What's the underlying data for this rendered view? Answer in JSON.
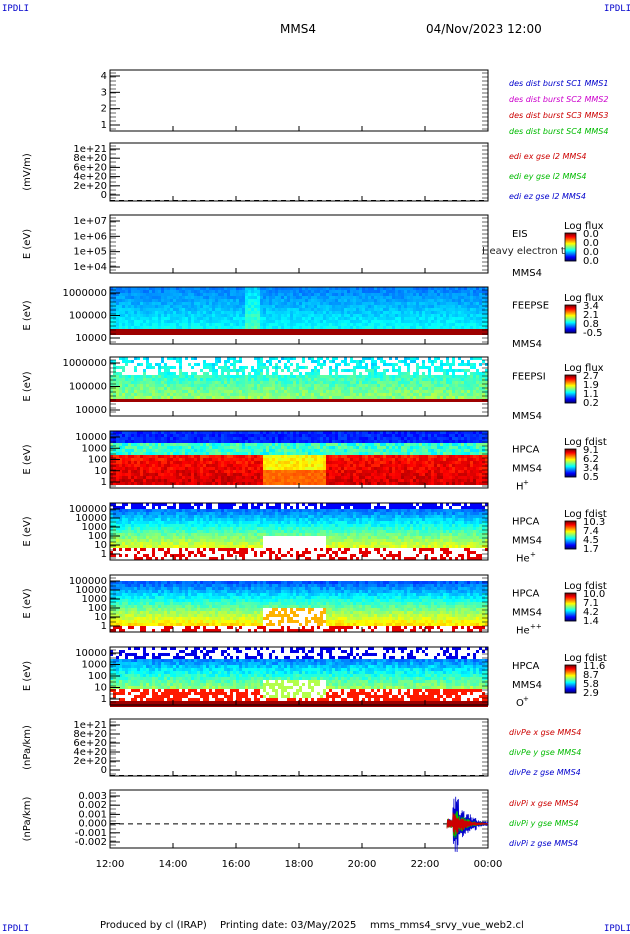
{
  "corner_label": "IPDLI",
  "header": {
    "spacecraft": "MMS4",
    "datetime": "04/Nov/2023 12:00"
  },
  "footer": {
    "produced_by": "Produced by  cl (IRAP)",
    "printing_date": "Printing date: 03/May/2025",
    "script": "mms_mms4_srvy_vue_web2.cl"
  },
  "colors": {
    "red": "#cc0000",
    "green": "#00bb00",
    "blue": "#0000cc",
    "magenta": "#cc00cc"
  },
  "chart_data": [
    {
      "type": "line",
      "id": "dist",
      "ticks": [
        "4",
        "3",
        "2",
        "1"
      ],
      "ylim": [
        0.5,
        4.5
      ],
      "legend": [
        {
          "text": "des dist burst SC1 MMS1",
          "color": "#0000cc"
        },
        {
          "text": "des dist burst SC2 MMS2",
          "color": "#cc00cc"
        },
        {
          "text": "des dist burst SC3 MMS3",
          "color": "#cc0000"
        },
        {
          "text": "des dist burst SC4 MMS4",
          "color": "#00bb00"
        }
      ]
    },
    {
      "type": "line",
      "id": "edi",
      "ylabel": "(mV/m)",
      "ticks": [
        "1e+21",
        "8e+20",
        "6e+20",
        "4e+20",
        "2e+20",
        "0"
      ],
      "ylim": [
        -1e+19,
        1.1e+21
      ],
      "legend": [
        {
          "text": "edi ex gse l2 MMS4",
          "color": "#cc0000"
        },
        {
          "text": "edi ey gse l2 MMS4",
          "color": "#00bb00"
        },
        {
          "text": "edi ez gse l2 MMS4",
          "color": "#0000cc"
        }
      ]
    },
    {
      "type": "heatmap",
      "id": "eis",
      "ylabel": "E (eV)",
      "ticks": [
        "1e+07",
        "1e+06",
        "1e+05",
        "1e+04"
      ],
      "labels": [
        "EIS",
        "MMS4"
      ],
      "overlay": "Heavy electron to",
      "cbar_title": "Log flux",
      "cbar_ticks": [
        "0.0",
        "0.0",
        "0.0",
        "0.0"
      ]
    },
    {
      "type": "heatmap",
      "id": "feepse",
      "ylabel": "E (eV)",
      "ticks": [
        "1000000",
        "100000",
        "10000"
      ],
      "labels": [
        "FEEPSE",
        "MMS4"
      ],
      "cbar_title": "Log flux",
      "cbar_ticks": [
        "3.4",
        "2.1",
        "0.8",
        "-0.5"
      ]
    },
    {
      "type": "heatmap",
      "id": "feepsi",
      "ylabel": "E (eV)",
      "ticks": [
        "1000000",
        "100000",
        "10000"
      ],
      "labels": [
        "FEEPSI",
        "MMS4"
      ],
      "cbar_title": "Log flux",
      "cbar_ticks": [
        "2.7",
        "1.9",
        "1.1",
        "0.2"
      ]
    },
    {
      "type": "heatmap",
      "id": "hpca_h",
      "ylabel": "E (eV)",
      "ticks": [
        "10000",
        "1000",
        "100",
        "10",
        "1"
      ],
      "labels": [
        "HPCA",
        "MMS4",
        "H"
      ],
      "ion_sup": "+",
      "cbar_title": "Log fdist",
      "cbar_ticks": [
        "9.1",
        "6.2",
        "3.4",
        "0.5"
      ]
    },
    {
      "type": "heatmap",
      "id": "hpca_he",
      "ylabel": "E (eV)",
      "ticks": [
        "100000",
        "10000",
        "1000",
        "100",
        "10",
        "1"
      ],
      "labels": [
        "HPCA",
        "MMS4",
        "He"
      ],
      "ion_sup": "+",
      "cbar_title": "Log fdist",
      "cbar_ticks": [
        "10.3",
        "7.4",
        "4.5",
        "1.7"
      ]
    },
    {
      "type": "heatmap",
      "id": "hpca_hepp",
      "ylabel": "E (eV)",
      "ticks": [
        "100000",
        "10000",
        "1000",
        "100",
        "10",
        "1"
      ],
      "labels": [
        "HPCA",
        "MMS4",
        "He"
      ],
      "ion_sup": "++",
      "cbar_title": "Log fdist",
      "cbar_ticks": [
        "10.0",
        "7.1",
        "4.2",
        "1.4"
      ]
    },
    {
      "type": "heatmap",
      "id": "hpca_o",
      "ylabel": "E (eV)",
      "ticks": [
        "10000",
        "1000",
        "100",
        "10",
        "1"
      ],
      "labels": [
        "HPCA",
        "MMS4",
        "O"
      ],
      "ion_sup": "+",
      "cbar_title": "Log fdist",
      "cbar_ticks": [
        "11.6",
        "8.7",
        "5.8",
        "2.9"
      ]
    },
    {
      "type": "line",
      "id": "divpe",
      "ylabel": "(nPa/km)",
      "ticks": [
        "1e+21",
        "8e+20",
        "6e+20",
        "4e+20",
        "2e+20",
        "0"
      ],
      "ylim": [
        -1e+19,
        1.1e+21
      ],
      "legend": [
        {
          "text": "divPe x gse MMS4",
          "color": "#cc0000"
        },
        {
          "text": "divPe y gse MMS4",
          "color": "#00bb00"
        },
        {
          "text": "divPe z gse MMS4",
          "color": "#0000cc"
        }
      ]
    },
    {
      "type": "line",
      "id": "divpi",
      "ylabel": "(nPa/km)",
      "ticks": [
        "0.003",
        "0.002",
        "0.001",
        "0.000",
        "-0.001",
        "-0.002"
      ],
      "ylim": [
        -0.0025,
        0.0035
      ],
      "x": [
        "22:42",
        "22:50",
        "23:00",
        "23:10",
        "23:20",
        "23:30",
        "23:40",
        "23:50"
      ],
      "series": [
        {
          "name": "divPi x gse MMS4",
          "color": "#cc0000",
          "values": [
            0.0,
            0.0008,
            0.0005,
            0.0003,
            0.0001,
            0.0001,
            0.0,
            0.0
          ]
        },
        {
          "name": "divPi y gse MMS4",
          "color": "#00bb00",
          "values": [
            0.0,
            0.0012,
            0.0006,
            0.0004,
            0.0002,
            0.0001,
            0.0,
            0.0
          ]
        },
        {
          "name": "divPi z gse MMS4",
          "color": "#0000cc",
          "values": [
            0.0,
            0.0027,
            -0.0012,
            0.0009,
            -0.0006,
            0.0003,
            -0.0002,
            0.0
          ]
        }
      ],
      "legend": [
        {
          "text": "divPi x gse MMS4",
          "color": "#cc0000"
        },
        {
          "text": "divPi y gse MMS4",
          "color": "#00bb00"
        },
        {
          "text": "divPi z gse MMS4",
          "color": "#0000cc"
        }
      ]
    }
  ],
  "x_axis": {
    "ticks": [
      "12:00",
      "14:00",
      "16:00",
      "18:00",
      "20:00",
      "22:00",
      "00:00"
    ]
  }
}
